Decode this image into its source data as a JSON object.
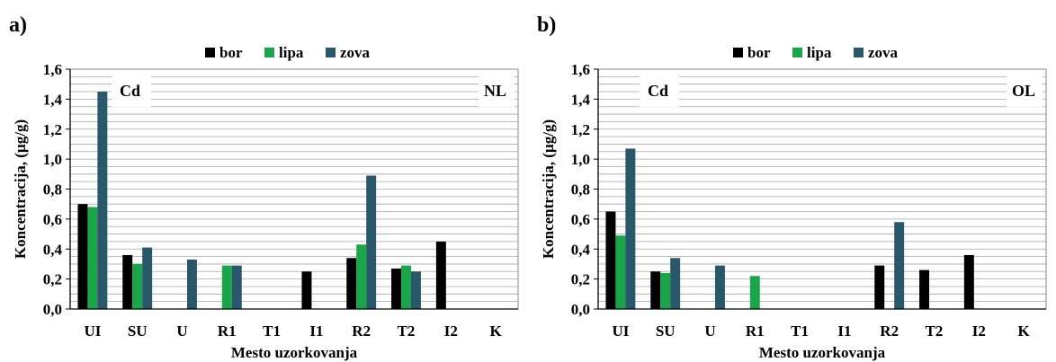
{
  "colors": {
    "bor": "#000000",
    "lipa": "#1ba54b",
    "zova": "#29586a",
    "grid": "#a6a6a6"
  },
  "chart_data": [
    {
      "type": "bar",
      "panel_label": "a)",
      "element_label": "Cd",
      "corner_label": "NL",
      "xlabel": "Mesto uzorkovanja",
      "ylabel": "Koncentracija, (µg/g)",
      "ylim": [
        0,
        1.6
      ],
      "yticks": [
        "0,0",
        "0,2",
        "0,4",
        "0,6",
        "0,8",
        "1,0",
        "1,2",
        "1,4",
        "1,6"
      ],
      "grid": true,
      "legend_position": "top-center",
      "categories": [
        "UI",
        "SU",
        "U",
        "R1",
        "T1",
        "I1",
        "R2",
        "T2",
        "I2",
        "K"
      ],
      "series": [
        {
          "name": "bor",
          "values": [
            0.7,
            0.36,
            null,
            null,
            null,
            0.25,
            0.34,
            0.27,
            0.45,
            null
          ]
        },
        {
          "name": "lipa",
          "values": [
            0.68,
            0.3,
            null,
            0.29,
            null,
            null,
            0.43,
            0.29,
            null,
            null
          ]
        },
        {
          "name": "zova",
          "values": [
            1.45,
            0.41,
            0.33,
            0.29,
            null,
            null,
            0.89,
            0.25,
            null,
            null
          ]
        }
      ]
    },
    {
      "type": "bar",
      "panel_label": "b)",
      "element_label": "Cd",
      "corner_label": "OL",
      "xlabel": "Mesto uzorkovanja",
      "ylabel": "Koncentracija, (µg/g)",
      "ylim": [
        0,
        1.6
      ],
      "yticks": [
        "0,0",
        "0,2",
        "0,4",
        "0,6",
        "0,8",
        "1,0",
        "1,2",
        "1,4",
        "1,6"
      ],
      "grid": true,
      "legend_position": "top-center",
      "categories": [
        "UI",
        "SU",
        "U",
        "R1",
        "T1",
        "I1",
        "R2",
        "T2",
        "I2",
        "K"
      ],
      "series": [
        {
          "name": "bor",
          "values": [
            0.65,
            0.25,
            null,
            null,
            null,
            null,
            0.29,
            0.26,
            0.36,
            null
          ]
        },
        {
          "name": "lipa",
          "values": [
            0.49,
            0.24,
            null,
            0.22,
            null,
            null,
            null,
            null,
            null,
            null
          ]
        },
        {
          "name": "zova",
          "values": [
            1.07,
            0.34,
            0.29,
            null,
            null,
            null,
            0.58,
            null,
            null,
            null
          ]
        }
      ]
    }
  ]
}
